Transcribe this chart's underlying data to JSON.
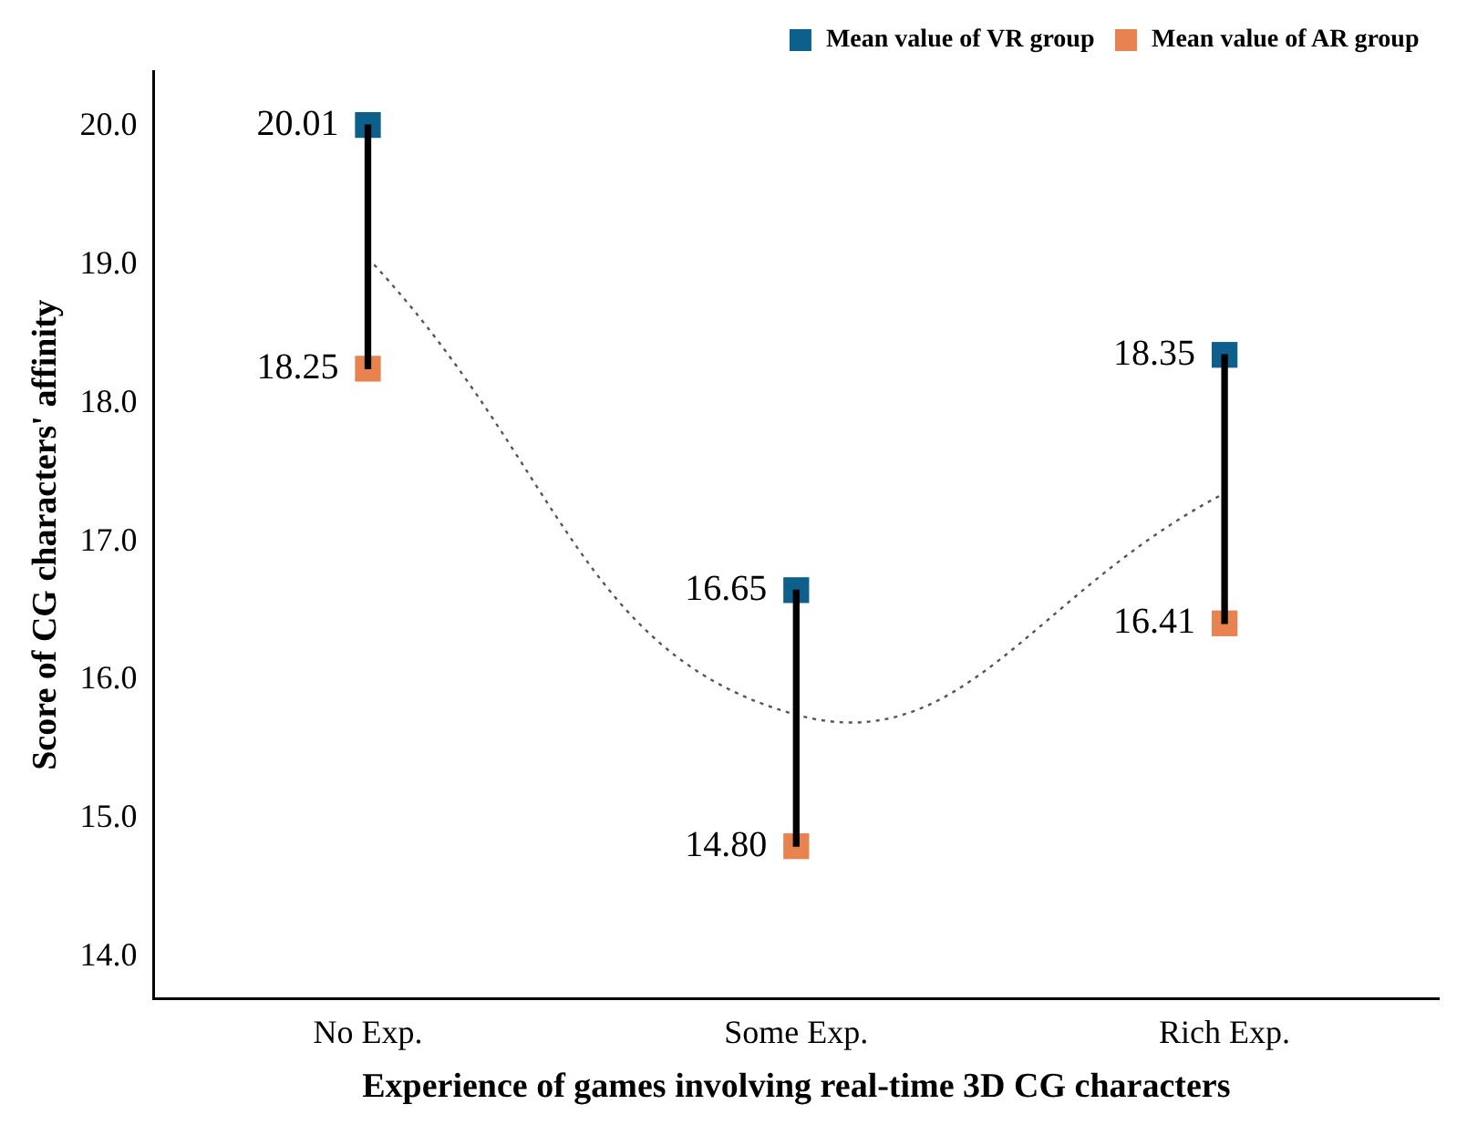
{
  "chart_data": {
    "type": "scatter",
    "xlabel": "Experience of games involving real-time 3D CG characters",
    "ylabel": "Score of CG characters' affinity",
    "categories": [
      "No Exp.",
      "Some Exp.",
      "Rich Exp."
    ],
    "series": [
      {
        "type": "bar",
        "color": "#000000",
        "base": [
          18.25,
          14.8,
          16.41
        ],
        "values": [
          1.76,
          1.85,
          1.94
        ]
      },
      {
        "type": "line",
        "color": "#555555",
        "line_style": "dotted",
        "marker": "none",
        "values": [
          19.05,
          15.75,
          17.35
        ]
      },
      {
        "name": "Mean value of VR group",
        "color": "#0d5f8c",
        "values": [
          20.01,
          16.65,
          18.35
        ],
        "value_labels": [
          "20.01",
          "16.65",
          "18.35"
        ]
      },
      {
        "name": "Mean value of AR group",
        "color": "#e8834f",
        "values": [
          18.25,
          14.8,
          16.41
        ],
        "value_labels": [
          "18.25",
          "14.80",
          "16.41"
        ]
      }
    ],
    "marker": "square",
    "legend": "top right",
    "grid": false,
    "ylim": [
      13.7,
      20.4
    ],
    "yticks": [
      {
        "value": 14,
        "label": "14.0"
      },
      {
        "value": 15,
        "label": "15.0"
      },
      {
        "value": 16,
        "label": "16.0"
      },
      {
        "value": 17,
        "label": "17.0"
      },
      {
        "value": 18,
        "label": "18.0"
      },
      {
        "value": 19,
        "label": "19.0"
      },
      {
        "value": 20,
        "label": "20.0"
      }
    ]
  }
}
